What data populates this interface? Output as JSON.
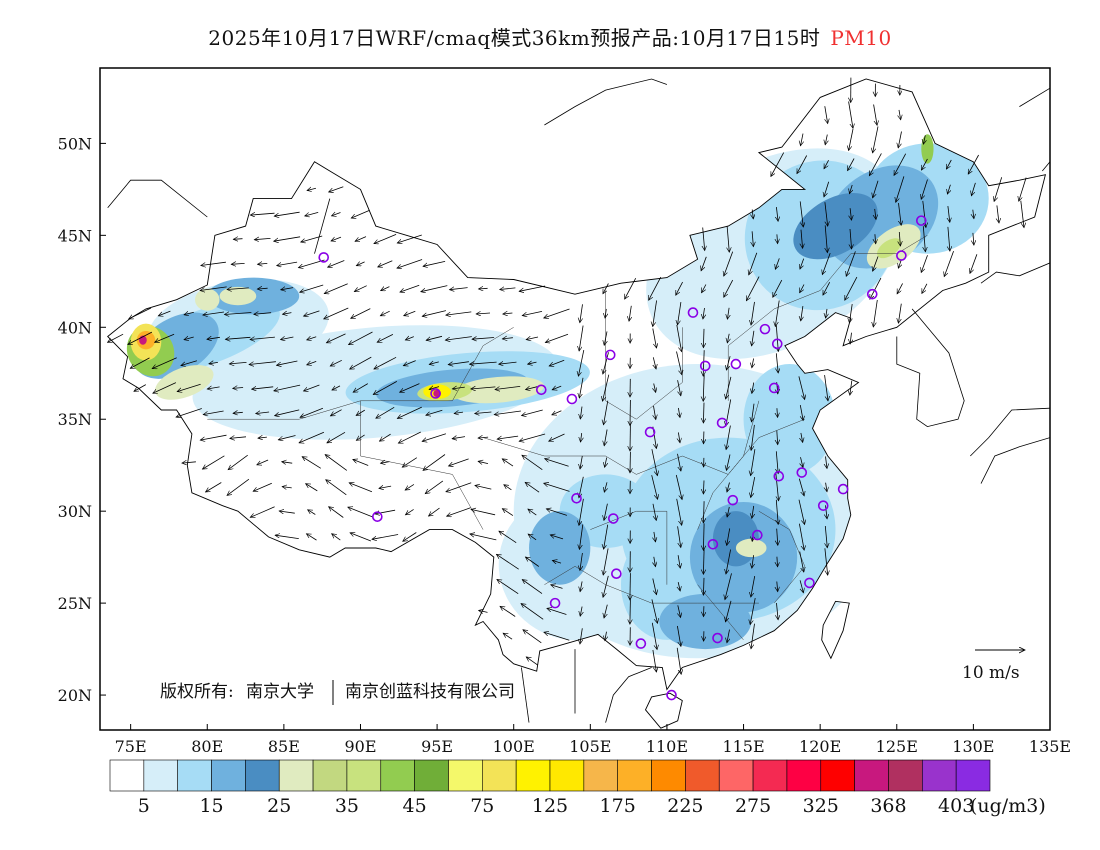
{
  "title": {
    "main": "2025年10月17日WRF/cmaq模式36km预报产品:10月17日15时",
    "variable": "PM10",
    "variable_color": "#f03030"
  },
  "axes": {
    "lon_labels": [
      "75E",
      "80E",
      "85E",
      "90E",
      "95E",
      "100E",
      "105E",
      "110E",
      "115E",
      "120E",
      "125E",
      "130E",
      "135E"
    ],
    "lon_values": [
      75,
      80,
      85,
      90,
      95,
      100,
      105,
      110,
      115,
      120,
      125,
      130,
      135
    ],
    "lat_labels": [
      "50N",
      "45N",
      "40N",
      "35N",
      "30N",
      "25N",
      "20N"
    ],
    "lat_values": [
      50,
      45,
      40,
      35,
      30,
      25,
      20
    ],
    "lon_range": [
      73,
      135
    ],
    "lat_range": [
      18.1,
      54.1
    ]
  },
  "wind_reference": {
    "label": "10 m/s"
  },
  "copyright": {
    "prefix": "版权所有:",
    "org1": "南京大学",
    "org2": "南京创蓝科技有限公司"
  },
  "colorbar": {
    "colors": [
      "#ffffff",
      "#d6eef9",
      "#a6dcf5",
      "#6fb1de",
      "#4a8dc2",
      "#e0ebc0",
      "#c2d880",
      "#c8e27e",
      "#92cc50",
      "#70ae38",
      "#f4f86a",
      "#f3e357",
      "#fff200",
      "#ffe800",
      "#f6b64a",
      "#fdb027",
      "#fe8a00",
      "#f05a2b",
      "#fe6666",
      "#f42a52",
      "#fe0044",
      "#fe0000",
      "#c8187e",
      "#b03060",
      "#9933cc",
      "#8a2be2"
    ],
    "labels": [
      "5",
      "15",
      "25",
      "35",
      "45",
      "75",
      "125",
      "175",
      "225",
      "275",
      "325",
      "368",
      "403"
    ],
    "units": "(ug/m3)"
  },
  "stations": [
    [
      87.6,
      43.8
    ],
    [
      91.1,
      29.7
    ],
    [
      94.9,
      36.4
    ],
    [
      101.8,
      36.6
    ],
    [
      103.8,
      36.1
    ],
    [
      106.3,
      38.5
    ],
    [
      104.1,
      30.7
    ],
    [
      106.5,
      29.6
    ],
    [
      106.7,
      26.6
    ],
    [
      102.7,
      25.0
    ],
    [
      108.3,
      22.8
    ],
    [
      108.9,
      34.3
    ],
    [
      110.3,
      20.0
    ],
    [
      111.7,
      40.8
    ],
    [
      112.5,
      37.9
    ],
    [
      113.6,
      34.8
    ],
    [
      114.5,
      38.0
    ],
    [
      116.4,
      39.9
    ],
    [
      117.2,
      39.1
    ],
    [
      117.0,
      36.7
    ],
    [
      114.3,
      30.6
    ],
    [
      113.0,
      28.2
    ],
    [
      115.9,
      28.7
    ],
    [
      113.3,
      23.1
    ],
    [
      117.3,
      31.9
    ],
    [
      118.8,
      32.1
    ],
    [
      120.2,
      30.3
    ],
    [
      121.5,
      31.2
    ],
    [
      119.3,
      26.1
    ],
    [
      123.4,
      41.8
    ],
    [
      125.3,
      43.9
    ],
    [
      126.6,
      45.8
    ]
  ]
}
